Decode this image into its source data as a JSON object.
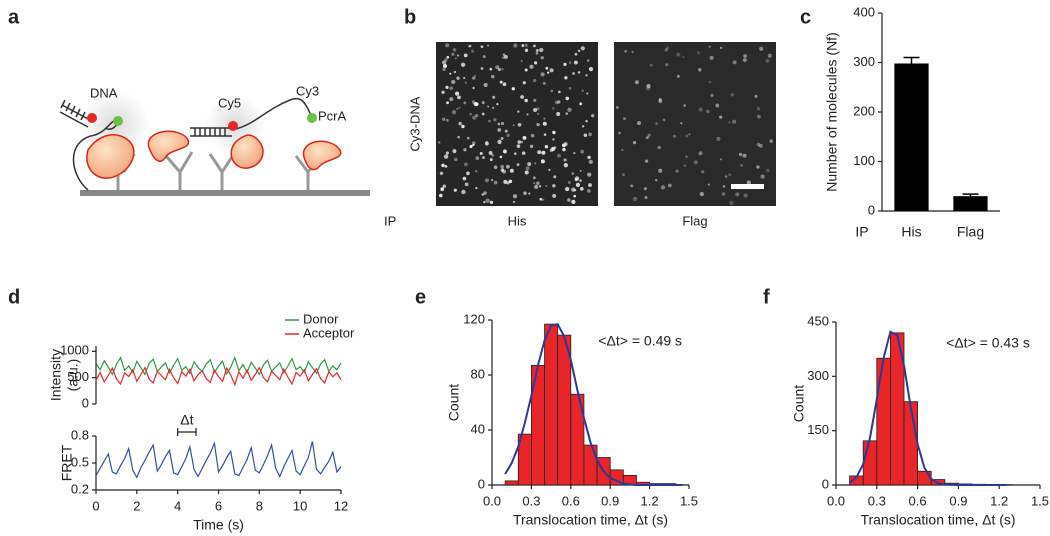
{
  "panel_labels": [
    "a",
    "b",
    "c",
    "d",
    "e",
    "f"
  ],
  "diagram": {
    "labels": [
      "DNA",
      "Cy5",
      "Cy3",
      "PcrA"
    ]
  },
  "images": {
    "ylabel": "Cy3-DNA",
    "row_label": "IP",
    "captions": [
      "His",
      "Flag"
    ]
  },
  "chart_data": [
    {
      "type": "bar",
      "ylabel": "Number of molecules (Nf)",
      "x_prefix": "IP",
      "categories": [
        "His",
        "Flag"
      ],
      "values": [
        298,
        30
      ],
      "errors": [
        12,
        4
      ],
      "color": "#000000",
      "ylim": [
        0,
        400
      ],
      "yticks": [
        0,
        100,
        200,
        300,
        400
      ]
    },
    {
      "type": "line",
      "ylabel": [
        "Intensity",
        "(a.u.)"
      ],
      "legend": "top-right",
      "x": [
        0,
        0.2,
        0.4,
        0.6,
        0.8,
        1,
        1.2,
        1.4,
        1.6,
        1.8,
        2,
        2.2,
        2.4,
        2.6,
        2.8,
        3,
        3.2,
        3.4,
        3.6,
        3.8,
        4,
        4.2,
        4.4,
        4.6,
        4.8,
        5,
        5.2,
        5.4,
        5.6,
        5.8,
        6,
        6.2,
        6.4,
        6.6,
        6.8,
        7,
        7.2,
        7.4,
        7.6,
        7.8,
        8,
        8.2,
        8.4,
        8.6,
        8.8,
        9,
        9.2,
        9.4,
        9.6,
        9.8,
        10,
        10.2,
        10.4,
        10.6,
        10.8,
        11,
        11.2,
        11.4,
        11.6,
        11.8,
        12
      ],
      "series": [
        {
          "name": "Donor",
          "color": "#2e9a48",
          "values": [
            780,
            650,
            820,
            700,
            560,
            750,
            880,
            640,
            720,
            600,
            810,
            690,
            560,
            770,
            850,
            620,
            700,
            780,
            590,
            730,
            860,
            640,
            710,
            580,
            800,
            690,
            620,
            760,
            840,
            600,
            720,
            810,
            570,
            700,
            880,
            630,
            750,
            600,
            790,
            680,
            560,
            740,
            830,
            620,
            700,
            780,
            590,
            720,
            860,
            650,
            710,
            600,
            800,
            690,
            580,
            760,
            840,
            620,
            720,
            650,
            780
          ]
        },
        {
          "name": "Acceptor",
          "color": "#e8262a",
          "values": [
            450,
            600,
            420,
            540,
            680,
            480,
            380,
            590,
            520,
            650,
            430,
            560,
            690,
            470,
            400,
            620,
            540,
            460,
            660,
            500,
            390,
            610,
            530,
            660,
            440,
            560,
            630,
            480,
            410,
            640,
            520,
            430,
            680,
            550,
            370,
            610,
            490,
            640,
            450,
            560,
            690,
            500,
            420,
            620,
            540,
            460,
            660,
            510,
            380,
            600,
            530,
            650,
            440,
            560,
            670,
            480,
            400,
            610,
            520,
            590,
            460
          ]
        }
      ],
      "xlim": [
        0,
        12
      ],
      "ylim": [
        0,
        1100
      ],
      "yticks": [
        0,
        500,
        1000
      ]
    },
    {
      "type": "line",
      "ylabel": "FRET",
      "xlabel": "Time (s)",
      "x": [
        0,
        0.2,
        0.4,
        0.6,
        0.8,
        1,
        1.2,
        1.4,
        1.6,
        1.8,
        2,
        2.2,
        2.4,
        2.6,
        2.8,
        3,
        3.2,
        3.4,
        3.6,
        3.8,
        4,
        4.2,
        4.4,
        4.6,
        4.8,
        5,
        5.2,
        5.4,
        5.6,
        5.8,
        6,
        6.2,
        6.4,
        6.6,
        6.8,
        7,
        7.2,
        7.4,
        7.6,
        7.8,
        8,
        8.2,
        8.4,
        8.6,
        8.8,
        9,
        9.2,
        9.4,
        9.6,
        9.8,
        10,
        10.2,
        10.4,
        10.6,
        10.8,
        11,
        11.2,
        11.4,
        11.6,
        11.8,
        12
      ],
      "series": [
        {
          "color": "#3050a8",
          "values": [
            0.36,
            0.44,
            0.52,
            0.6,
            0.4,
            0.38,
            0.47,
            0.55,
            0.66,
            0.42,
            0.34,
            0.45,
            0.53,
            0.62,
            0.7,
            0.41,
            0.48,
            0.57,
            0.64,
            0.39,
            0.37,
            0.46,
            0.55,
            0.68,
            0.43,
            0.35,
            0.44,
            0.53,
            0.61,
            0.72,
            0.4,
            0.47,
            0.56,
            0.63,
            0.38,
            0.36,
            0.45,
            0.54,
            0.67,
            0.42,
            0.39,
            0.48,
            0.58,
            0.7,
            0.44,
            0.35,
            0.46,
            0.55,
            0.64,
            0.41,
            0.37,
            0.47,
            0.56,
            0.74,
            0.43,
            0.38,
            0.45,
            0.52,
            0.62,
            0.4,
            0.46
          ]
        }
      ],
      "annotation": {
        "text": "Δt",
        "x": [
          4,
          4.9
        ]
      },
      "xlim": [
        0,
        12
      ],
      "xticks": [
        0,
        2,
        4,
        6,
        8,
        10,
        12
      ],
      "ylim": [
        0.2,
        0.8
      ],
      "yticks": [
        0.2,
        0.5,
        0.8
      ]
    },
    {
      "type": "histogram",
      "xlabel": "Translocation time, Δt (s)",
      "ylabel": "Count",
      "annotation": "<Δt> = 0.49 s",
      "bins": [
        0.1,
        0.2,
        0.3,
        0.4,
        0.5,
        0.6,
        0.7,
        0.8,
        0.9,
        1.0,
        1.1,
        1.2,
        1.3,
        1.4
      ],
      "values": [
        3,
        37,
        87,
        117,
        109,
        66,
        29,
        20,
        11,
        7,
        2,
        1,
        1
      ],
      "color": "#e8262a",
      "fit": {
        "color": "#2b3a97",
        "x": [
          0.1,
          0.15,
          0.2,
          0.25,
          0.3,
          0.35,
          0.4,
          0.45,
          0.5,
          0.55,
          0.6,
          0.65,
          0.7,
          0.75,
          0.8,
          0.85,
          0.9,
          1.0,
          1.1,
          1.2,
          1.45
        ],
        "values": [
          8,
          16,
          28,
          45,
          65,
          87,
          105,
          116,
          117,
          108,
          91,
          69,
          49,
          31,
          18,
          10,
          5,
          1,
          0,
          0,
          0
        ]
      },
      "xlim": [
        0,
        1.5
      ],
      "xticks": [
        {
          "value": 0,
          "label": "0.0"
        },
        0.3,
        0.6,
        0.9,
        1.2,
        1.5
      ],
      "ylim": [
        0,
        120
      ],
      "yticks": [
        0,
        40,
        80,
        120
      ]
    },
    {
      "type": "histogram",
      "xlabel": "Translocation time, Δt (s)",
      "ylabel": "Count",
      "annotation": "<Δt> = 0.43 s",
      "bins": [
        0.1,
        0.2,
        0.3,
        0.4,
        0.5,
        0.6,
        0.7,
        0.8,
        0.9,
        1.0,
        1.1,
        1.2,
        1.3
      ],
      "values": [
        25,
        122,
        350,
        420,
        230,
        38,
        15,
        5,
        3,
        2,
        1,
        1
      ],
      "color": "#e8262a",
      "fit": {
        "color": "#2b3a97",
        "x": [
          0.1,
          0.15,
          0.2,
          0.25,
          0.3,
          0.35,
          0.4,
          0.45,
          0.5,
          0.55,
          0.6,
          0.65,
          0.7,
          0.75,
          0.8,
          0.9,
          1.0,
          1.25
        ],
        "values": [
          6,
          21,
          58,
          130,
          237,
          351,
          423,
          414,
          330,
          214,
          113,
          48,
          17,
          5,
          1,
          0,
          0,
          0
        ]
      },
      "xlim": [
        0,
        1.5
      ],
      "xticks": [
        {
          "value": 0,
          "label": "0.0"
        },
        0.3,
        0.6,
        0.9,
        1.2,
        1.5
      ],
      "ylim": [
        0,
        450
      ],
      "yticks": [
        0,
        150,
        300,
        450
      ]
    }
  ]
}
